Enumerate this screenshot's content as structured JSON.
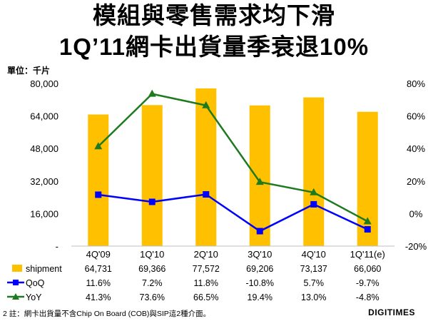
{
  "title_line1": "模組與零售需求均下滑",
  "title_line2": "1Q’11網卡出貨量季衰退10%",
  "unit_label": "單位：千片",
  "note": "2  註：網卡出貨量不含Chip On Board (COB)與SIP這2種介面。",
  "logo": "DIGITIMES",
  "colors": {
    "shipment": "#FFC000",
    "qoq": "#0000FF",
    "yoy": "#1E7A1E"
  },
  "chart_data": {
    "type": "bar",
    "categories": [
      "4Q'09",
      "1Q'10",
      "2Q'10",
      "3Q'10",
      "4Q'10",
      "1Q'11(e)"
    ],
    "series": [
      {
        "name": "shipment",
        "type": "bar",
        "axis": "left",
        "values": [
          64731,
          69366,
          77572,
          69206,
          73137,
          66060
        ],
        "labels": [
          "64,731",
          "69,366",
          "77,572",
          "69,206",
          "73,137",
          "66,060"
        ]
      },
      {
        "name": "QoQ",
        "type": "line",
        "axis": "right",
        "values": [
          11.6,
          7.2,
          11.8,
          -10.8,
          5.7,
          -9.7
        ],
        "labels": [
          "11.6%",
          "7.2%",
          "11.8%",
          "-10.8%",
          "5.7%",
          "-9.7%"
        ]
      },
      {
        "name": "YoY",
        "type": "line",
        "axis": "right",
        "values": [
          41.3,
          73.6,
          66.5,
          19.4,
          13.0,
          -4.8
        ],
        "labels": [
          "41.3%",
          "73.6%",
          "66.5%",
          "19.4%",
          "13.0%",
          "-4.8%"
        ]
      }
    ],
    "y_left": {
      "range": [
        0,
        80000
      ],
      "tick_labels": [
        "-",
        "16,000",
        "32,000",
        "48,000",
        "64,000",
        "80,000"
      ]
    },
    "y_right": {
      "range": [
        -20,
        80
      ],
      "tick_labels": [
        "-20%",
        "0%",
        "20%",
        "40%",
        "60%",
        "80%"
      ]
    },
    "grid": false,
    "legend": "data table below chart"
  }
}
